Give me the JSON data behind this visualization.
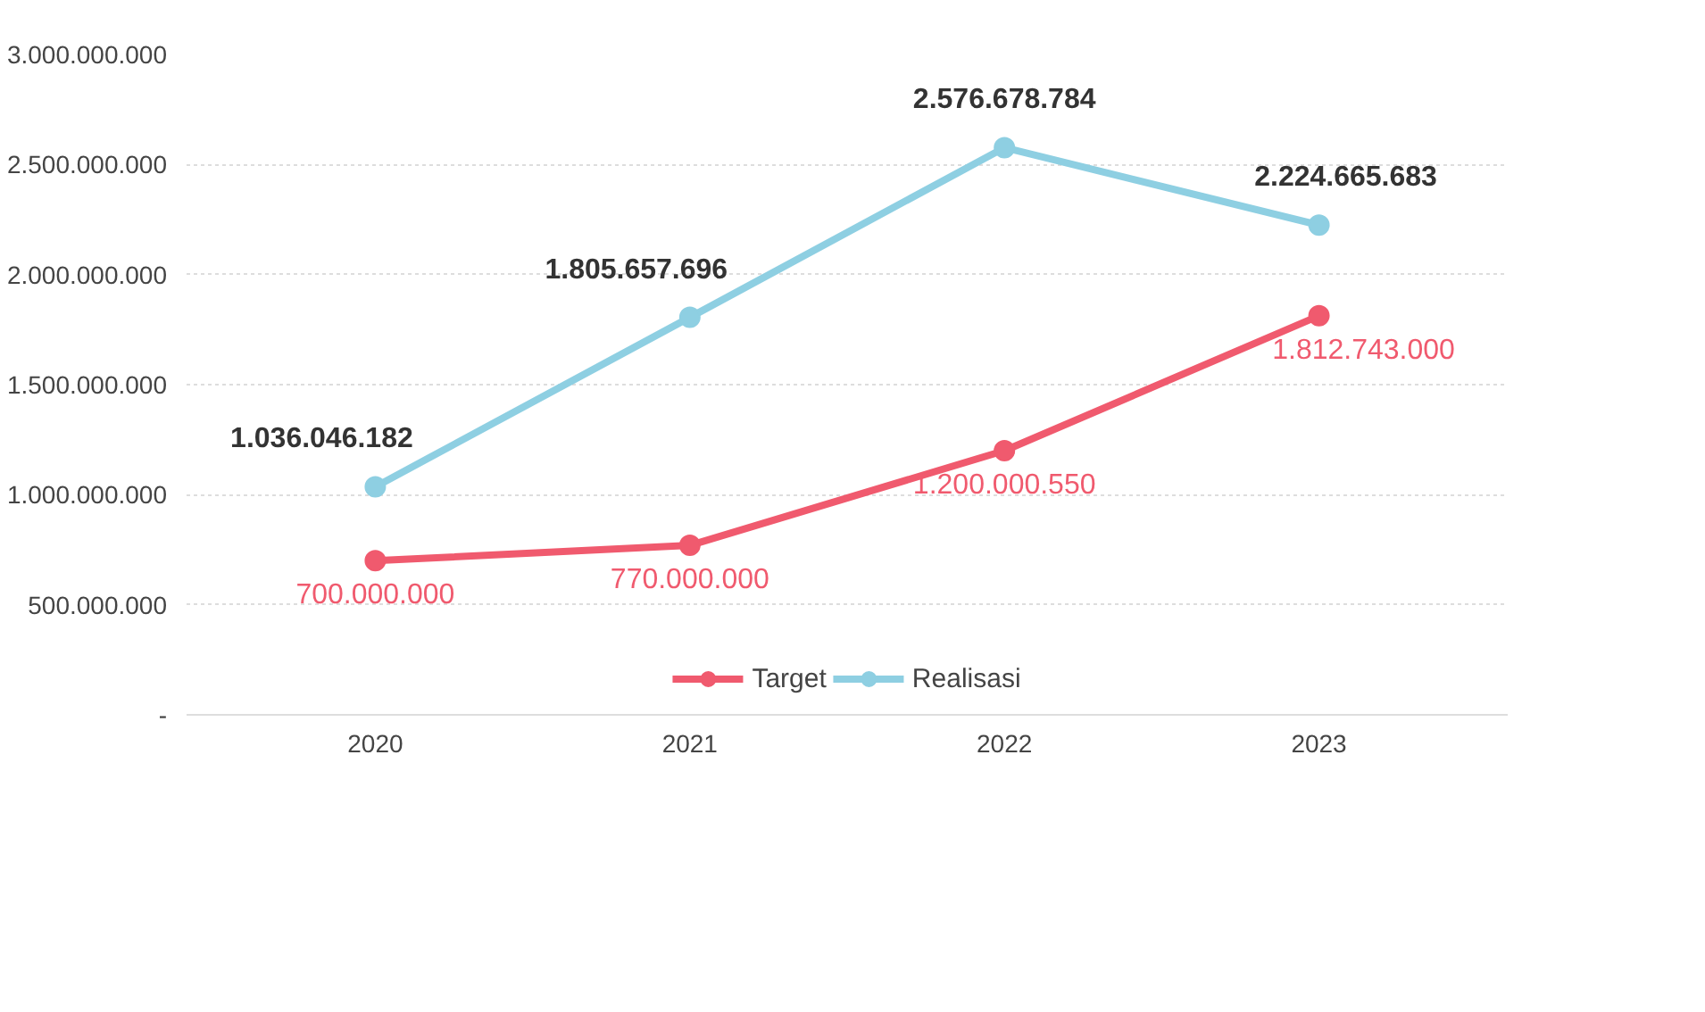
{
  "chart_data": {
    "type": "line",
    "categories": [
      "2020",
      "2021",
      "2022",
      "2023"
    ],
    "series": [
      {
        "name": "Target",
        "color": "#f05a6e",
        "values": [
          700000000,
          770000000,
          1200000550,
          1812743000
        ],
        "value_labels": [
          "700.000.000",
          "770.000.000",
          "1.200.000.550",
          "1.812.743.000"
        ]
      },
      {
        "name": "Realisasi",
        "color": "#8ecfe2",
        "values": [
          1036046182,
          1805657696,
          2576678784,
          2224665683
        ],
        "value_labels": [
          "1.036.046.182",
          "1.805.657.696",
          "2.576.678.784",
          "2.224.665.683"
        ]
      }
    ],
    "ylim": [
      0,
      3000000000
    ],
    "yticks": [
      {
        "value": 0,
        "label": "-"
      },
      {
        "value": 500000000,
        "label": "500.000.000"
      },
      {
        "value": 1000000000,
        "label": "1.000.000.000"
      },
      {
        "value": 1500000000,
        "label": "1.500.000.000"
      },
      {
        "value": 2000000000,
        "label": "2.000.000.000"
      },
      {
        "value": 2500000000,
        "label": "2.500.000.000"
      },
      {
        "value": 3000000000,
        "label": "3.000.000.000"
      }
    ],
    "grid": "y",
    "legend": "bottom",
    "marker": "circle",
    "line_style": "solid"
  }
}
